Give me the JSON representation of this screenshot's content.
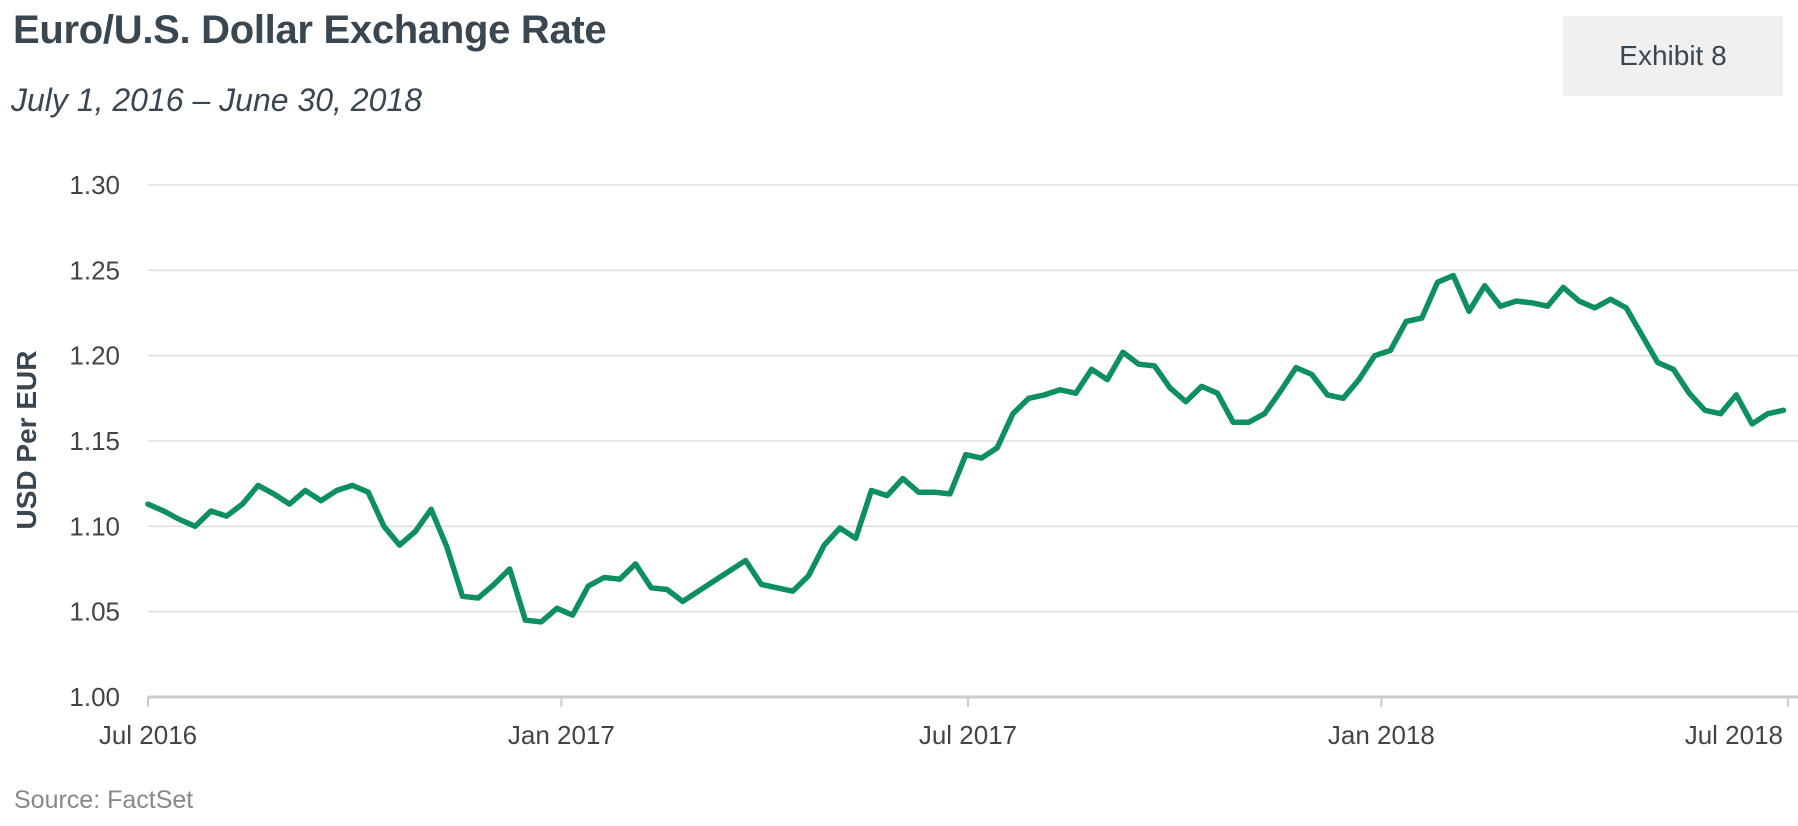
{
  "title": "Euro/U.S. Dollar Exchange Rate",
  "subtitle": "July 1, 2016 – June 30, 2018",
  "exhibit_label": "Exhibit 8",
  "source": "Source: FactSet",
  "colors": {
    "line": "#0e8f5f",
    "grid": "#dddddd",
    "axis": "#cccccc",
    "text": "#3a4650"
  },
  "chart_data": {
    "type": "line",
    "ylabel": "USD Per EUR",
    "xlabel": "",
    "ylim": [
      1.0,
      1.3
    ],
    "yticks": [
      "1.00",
      "1.05",
      "1.10",
      "1.15",
      "1.20",
      "1.25",
      "1.30"
    ],
    "xticks": [
      {
        "label": "Jul 2016",
        "date": "2016-07-01"
      },
      {
        "label": "Jan 2017",
        "date": "2017-01-01"
      },
      {
        "label": "Jul 2017",
        "date": "2017-07-01"
      },
      {
        "label": "Jan 2018",
        "date": "2018-01-01"
      },
      {
        "label": "Jul 2018",
        "date": "2018-07-01"
      }
    ],
    "grid": true,
    "series": [
      {
        "values": [
          [
            "2016-07-01",
            1.113
          ],
          [
            "2016-07-08",
            1.109
          ],
          [
            "2016-07-15",
            1.104
          ],
          [
            "2016-07-22",
            1.1
          ],
          [
            "2016-07-29",
            1.109
          ],
          [
            "2016-08-05",
            1.106
          ],
          [
            "2016-08-12",
            1.113
          ],
          [
            "2016-08-19",
            1.124
          ],
          [
            "2016-08-26",
            1.119
          ],
          [
            "2016-09-02",
            1.113
          ],
          [
            "2016-09-09",
            1.121
          ],
          [
            "2016-09-16",
            1.115
          ],
          [
            "2016-09-23",
            1.121
          ],
          [
            "2016-09-30",
            1.124
          ],
          [
            "2016-10-07",
            1.12
          ],
          [
            "2016-10-14",
            1.1
          ],
          [
            "2016-10-21",
            1.089
          ],
          [
            "2016-10-28",
            1.097
          ],
          [
            "2016-11-04",
            1.11
          ],
          [
            "2016-11-11",
            1.088
          ],
          [
            "2016-11-18",
            1.059
          ],
          [
            "2016-11-25",
            1.058
          ],
          [
            "2016-12-02",
            1.066
          ],
          [
            "2016-12-09",
            1.075
          ],
          [
            "2016-12-16",
            1.045
          ],
          [
            "2016-12-23",
            1.044
          ],
          [
            "2016-12-30",
            1.052
          ],
          [
            "2017-01-06",
            1.048
          ],
          [
            "2017-01-13",
            1.065
          ],
          [
            "2017-01-20",
            1.07
          ],
          [
            "2017-01-27",
            1.069
          ],
          [
            "2017-02-03",
            1.078
          ],
          [
            "2017-02-10",
            1.064
          ],
          [
            "2017-02-17",
            1.063
          ],
          [
            "2017-02-24",
            1.056
          ],
          [
            "2017-03-03",
            1.062
          ],
          [
            "2017-03-10",
            1.068
          ],
          [
            "2017-03-17",
            1.074
          ],
          [
            "2017-03-24",
            1.08
          ],
          [
            "2017-03-31",
            1.066
          ],
          [
            "2017-04-07",
            1.064
          ],
          [
            "2017-04-14",
            1.062
          ],
          [
            "2017-04-21",
            1.071
          ],
          [
            "2017-04-28",
            1.089
          ],
          [
            "2017-05-05",
            1.099
          ],
          [
            "2017-05-12",
            1.093
          ],
          [
            "2017-05-19",
            1.121
          ],
          [
            "2017-05-26",
            1.118
          ],
          [
            "2017-06-02",
            1.128
          ],
          [
            "2017-06-09",
            1.12
          ],
          [
            "2017-06-16",
            1.12
          ],
          [
            "2017-06-23",
            1.119
          ],
          [
            "2017-06-30",
            1.142
          ],
          [
            "2017-07-07",
            1.14
          ],
          [
            "2017-07-14",
            1.146
          ],
          [
            "2017-07-21",
            1.166
          ],
          [
            "2017-07-28",
            1.175
          ],
          [
            "2017-08-04",
            1.177
          ],
          [
            "2017-08-11",
            1.18
          ],
          [
            "2017-08-18",
            1.178
          ],
          [
            "2017-08-25",
            1.192
          ],
          [
            "2017-09-01",
            1.186
          ],
          [
            "2017-09-08",
            1.202
          ],
          [
            "2017-09-15",
            1.195
          ],
          [
            "2017-09-22",
            1.194
          ],
          [
            "2017-09-29",
            1.181
          ],
          [
            "2017-10-06",
            1.173
          ],
          [
            "2017-10-13",
            1.182
          ],
          [
            "2017-10-20",
            1.178
          ],
          [
            "2017-10-27",
            1.161
          ],
          [
            "2017-11-03",
            1.161
          ],
          [
            "2017-11-10",
            1.166
          ],
          [
            "2017-11-17",
            1.179
          ],
          [
            "2017-11-24",
            1.193
          ],
          [
            "2017-12-01",
            1.189
          ],
          [
            "2017-12-08",
            1.177
          ],
          [
            "2017-12-15",
            1.175
          ],
          [
            "2017-12-22",
            1.186
          ],
          [
            "2017-12-29",
            1.2
          ],
          [
            "2018-01-05",
            1.203
          ],
          [
            "2018-01-12",
            1.22
          ],
          [
            "2018-01-19",
            1.222
          ],
          [
            "2018-01-26",
            1.243
          ],
          [
            "2018-02-02",
            1.247
          ],
          [
            "2018-02-09",
            1.226
          ],
          [
            "2018-02-16",
            1.241
          ],
          [
            "2018-02-23",
            1.229
          ],
          [
            "2018-03-02",
            1.232
          ],
          [
            "2018-03-09",
            1.231
          ],
          [
            "2018-03-16",
            1.229
          ],
          [
            "2018-03-23",
            1.24
          ],
          [
            "2018-03-30",
            1.232
          ],
          [
            "2018-04-06",
            1.228
          ],
          [
            "2018-04-13",
            1.233
          ],
          [
            "2018-04-20",
            1.228
          ],
          [
            "2018-04-27",
            1.212
          ],
          [
            "2018-05-04",
            1.196
          ],
          [
            "2018-05-11",
            1.192
          ],
          [
            "2018-05-18",
            1.178
          ],
          [
            "2018-05-25",
            1.168
          ],
          [
            "2018-06-01",
            1.166
          ],
          [
            "2018-06-08",
            1.177
          ],
          [
            "2018-06-15",
            1.16
          ],
          [
            "2018-06-22",
            1.166
          ],
          [
            "2018-06-29",
            1.168
          ]
        ]
      }
    ]
  }
}
